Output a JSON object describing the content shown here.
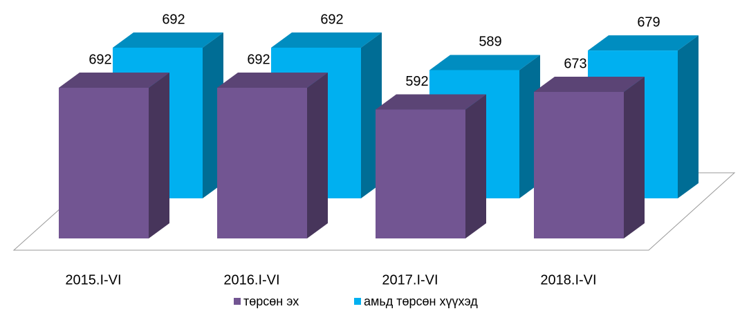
{
  "chart_data": {
    "type": "bar3d",
    "categories": [
      "2015.I-VI",
      "2016.I-VI",
      "2017.I-VI",
      "2018.I-VI"
    ],
    "series": [
      {
        "name": "төрсөн эх",
        "color": "#725592",
        "values": [
          692,
          692,
          592,
          673
        ]
      },
      {
        "name": "амьд төрсөн хүүхэд",
        "color": "#00b0f0",
        "values": [
          692,
          692,
          589,
          679
        ]
      }
    ],
    "legend": "bottom"
  }
}
